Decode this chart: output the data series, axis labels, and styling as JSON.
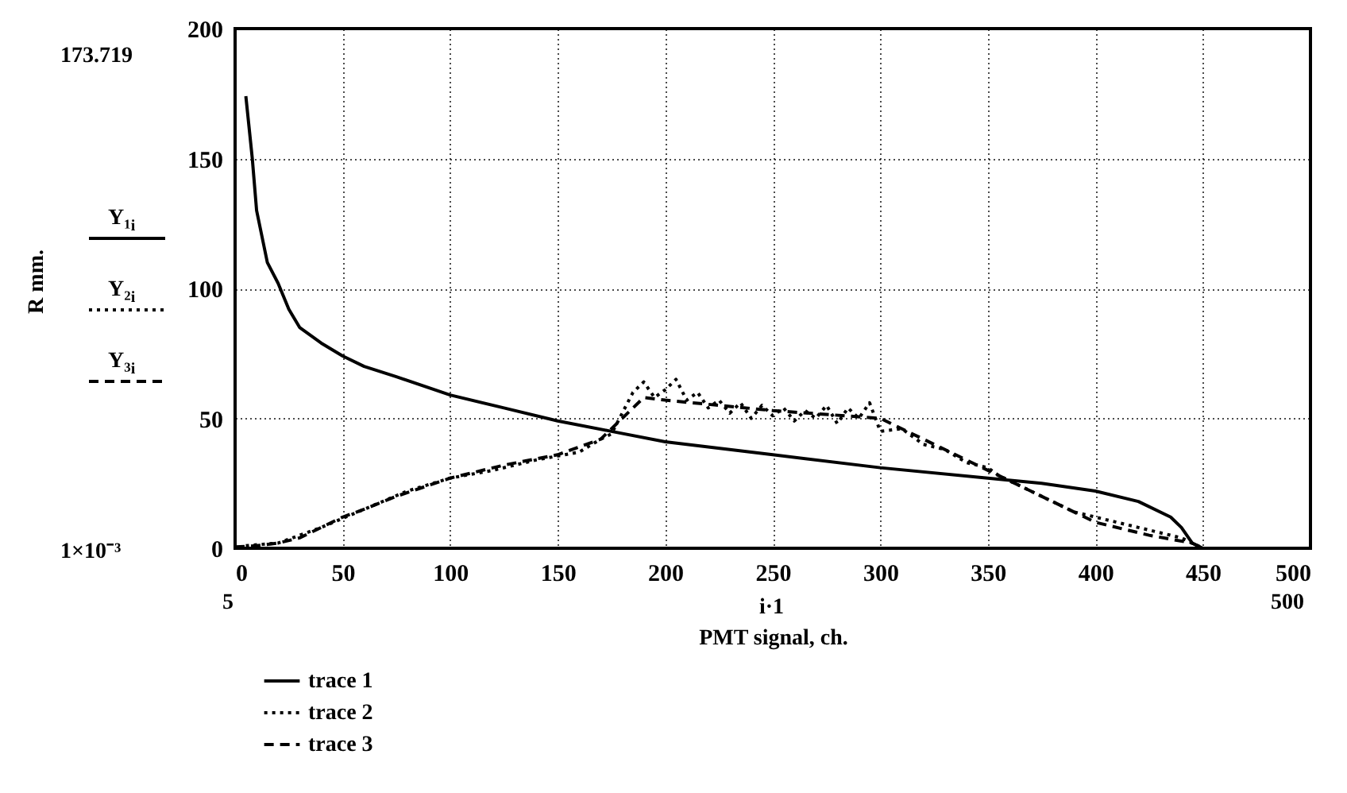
{
  "chart_data": {
    "type": "line",
    "xlabel": "PMT signal, ch.",
    "xlim": [
      0,
      500
    ],
    "xticks": [
      0,
      50,
      100,
      150,
      200,
      250,
      300,
      350,
      400,
      450,
      500
    ],
    "ylim": [
      0,
      200
    ],
    "yticks": [
      0,
      50,
      100,
      150,
      200
    ],
    "grid": true,
    "legend": "bottom left",
    "annotations": [
      "173.719",
      "1×10⁻³",
      "5",
      "500",
      "i·1",
      "Y₁$_{i}$",
      "Y₂$_{i}$",
      "Y₃$_{i}$",
      "R mm."
    ],
    "series": [
      {
        "name": "trace 1",
        "color": "#000000",
        "line_style": "solid",
        "x": [
          5,
          8,
          10,
          15,
          20,
          25,
          30,
          40,
          50,
          60,
          75,
          100,
          125,
          150,
          175,
          200,
          250,
          300,
          350,
          375,
          400,
          420,
          435,
          440,
          445,
          450,
          500
        ],
        "values": [
          174,
          150,
          130,
          110,
          102,
          92,
          85,
          79,
          74,
          70,
          66,
          59,
          54,
          49,
          45,
          41,
          36,
          31,
          27,
          25,
          22,
          18,
          12,
          8,
          2,
          0,
          0
        ]
      },
      {
        "name": "trace 2",
        "color": "#000000",
        "line_style": "dotted",
        "x": [
          5,
          20,
          40,
          60,
          80,
          100,
          120,
          140,
          160,
          170,
          175,
          180,
          185,
          190,
          195,
          200,
          205,
          210,
          215,
          220,
          225,
          230,
          235,
          240,
          245,
          250,
          255,
          260,
          265,
          270,
          275,
          280,
          285,
          290,
          295,
          300,
          310,
          320,
          330,
          340,
          350,
          355,
          360,
          370,
          380,
          390,
          400,
          420,
          440,
          450,
          500
        ],
        "values": [
          1,
          2,
          8,
          15,
          22,
          27,
          30,
          34,
          37,
          42,
          44,
          52,
          60,
          64,
          58,
          61,
          65,
          57,
          60,
          54,
          57,
          52,
          56,
          50,
          55,
          51,
          54,
          49,
          53,
          50,
          55,
          48,
          54,
          50,
          56,
          45,
          46,
          40,
          38,
          33,
          31,
          28,
          26,
          22,
          18,
          14,
          12,
          8,
          4,
          0,
          0
        ]
      },
      {
        "name": "trace 3",
        "color": "#000000",
        "line_style": "dashed",
        "x": [
          0,
          10,
          20,
          30,
          40,
          50,
          60,
          75,
          100,
          125,
          150,
          170,
          180,
          190,
          200,
          250,
          300,
          325,
          350,
          375,
          400,
          425,
          445,
          450,
          500
        ],
        "values": [
          0.5,
          1,
          2,
          4,
          8,
          12,
          15,
          20,
          27,
          32,
          36,
          42,
          50,
          58,
          57,
          53,
          50,
          40,
          30,
          20,
          10,
          5,
          2,
          0,
          0
        ]
      }
    ]
  }
}
